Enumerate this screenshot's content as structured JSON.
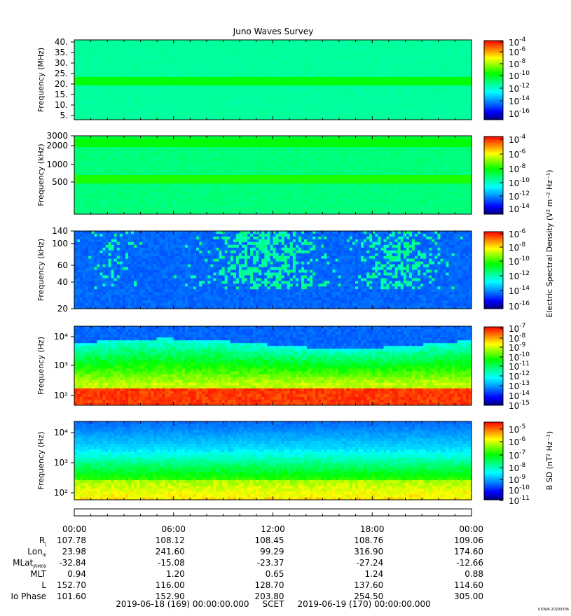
{
  "title": "Juno Waves Survey",
  "watermark": "UIOWA 20200306",
  "colors": {
    "spectrogram_scale": [
      "#000080",
      "#0000ff",
      "#0080ff",
      "#00ffff",
      "#00ff80",
      "#00ff00",
      "#80ff00",
      "#ffff00",
      "#ff8000",
      "#ff0000"
    ]
  },
  "chart_data": [
    {
      "type": "heatmap",
      "ylabel": "Frequency (MHz)",
      "yticks": [
        "40.",
        "35.",
        "30.",
        "25.",
        "20.",
        "15.",
        "10.",
        "5."
      ],
      "colorbar_ticks": [
        "-4",
        "-6",
        "-8",
        "-10",
        "-12",
        "-14",
        "-16"
      ],
      "colorbar_label": "",
      "description_levels": {
        "background": 0.42,
        "bright_band_20MHz": 0.55
      }
    },
    {
      "type": "heatmap",
      "ylabel": "Frequency (kHz)",
      "yticks": [
        "3000",
        "2000",
        "1000",
        "500"
      ],
      "colorbar_ticks": [
        "-4",
        "-6",
        "-8",
        "-10",
        "-12",
        "-14"
      ],
      "colorbar_label": "Electric Spectral Density (V² m⁻² Hz⁻¹)",
      "description_levels": {
        "background": 0.45,
        "band_2000kHz": 0.55,
        "band_600kHz": 0.58
      }
    },
    {
      "type": "heatmap",
      "ylabel": "Frequency (kHz)",
      "yticks": [
        "140",
        "100",
        "60",
        "40",
        "20"
      ],
      "colorbar_ticks": [
        "-6",
        "-8",
        "-10",
        "-12",
        "-14",
        "-16"
      ],
      "colorbar_label": "",
      "description_levels": {
        "background": 0.2,
        "bursts": 0.38
      }
    },
    {
      "type": "heatmap",
      "ylabel": "Frequency (Hz)",
      "yticks": [
        "10⁴",
        "10³",
        "10²"
      ],
      "colorbar_ticks": [
        "-7",
        "-8",
        "-9",
        "-10",
        "-11",
        "-12",
        "-13",
        "-14",
        "-15"
      ],
      "colorbar_label": "",
      "description_levels": {
        "top": 0.2,
        "middle": 0.55,
        "bottom": 0.95
      }
    },
    {
      "type": "heatmap",
      "ylabel": "Frequency (Hz)",
      "yticks": [
        "10⁴",
        "10³",
        "10²"
      ],
      "colorbar_ticks": [
        "-5",
        "-6",
        "-7",
        "-8",
        "-9",
        "-10",
        "-11"
      ],
      "colorbar_label": "B SD (nT² Hz⁻¹)",
      "description_levels": {
        "top": 0.2,
        "middle": 0.5,
        "bottom": 0.75
      }
    }
  ],
  "ephemeris": {
    "times": [
      "00:00",
      "06:00",
      "12:00",
      "18:00",
      "00:00"
    ],
    "rows": [
      {
        "label": "R",
        "sub": "J",
        "values": [
          "107.78",
          "108.12",
          "108.45",
          "108.76",
          "109.06"
        ]
      },
      {
        "label": "Lon",
        "sub": "III",
        "values": [
          "23.98",
          "241.60",
          "99.29",
          "316.90",
          "174.60"
        ]
      },
      {
        "label": "MLat",
        "sub": "JRM09",
        "values": [
          "-32.84",
          "-15.08",
          "-23.37",
          "-27.24",
          "-12.66"
        ]
      },
      {
        "label": "MLT",
        "sub": "",
        "values": [
          "0.94",
          "1.20",
          "0.65",
          "1.24",
          "0.88"
        ]
      },
      {
        "label": "L",
        "sub": "",
        "values": [
          "152.70",
          "116.00",
          "128.70",
          "137.60",
          "114.60"
        ]
      },
      {
        "label": "Io Phase",
        "sub": "",
        "values": [
          "101.60",
          "152.90",
          "203.80",
          "254.50",
          "305.00"
        ]
      }
    ],
    "footer": "2019-06-18 (169) 00:00:00.000     SCET     2019-06-19 (170) 00:00:00.000"
  }
}
